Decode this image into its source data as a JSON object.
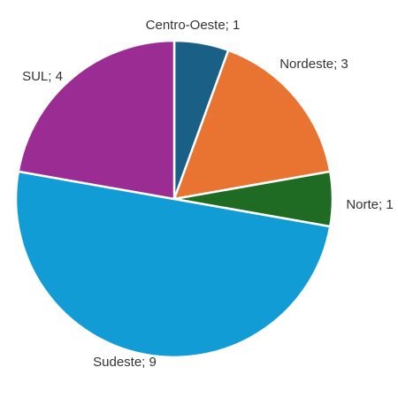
{
  "chart_data": {
    "type": "pie",
    "categories": [
      "Centro-Oeste",
      "Nordeste",
      "Norte",
      "Sudeste",
      "SUL"
    ],
    "values": [
      1,
      3,
      1,
      9,
      4
    ],
    "value_labels": [
      "Centro-Oeste; 1",
      "Nordeste; 3",
      "Norte; 1",
      "Sudeste; 9",
      "SUL; 4"
    ],
    "colors": [
      "#1a5f86",
      "#e97432",
      "#1f6b24",
      "#129cd6",
      "#9b2c94"
    ]
  }
}
